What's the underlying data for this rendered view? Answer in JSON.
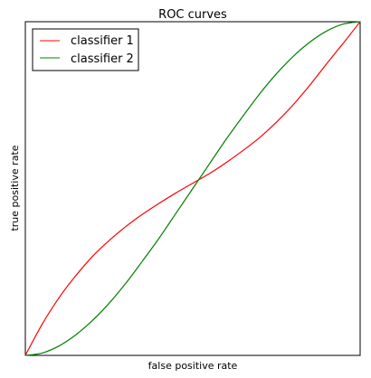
{
  "chart_data": {
    "type": "line",
    "title": "ROC curves",
    "xlabel": "false positive rate",
    "ylabel": "true positive rate",
    "xlim": [
      0,
      1
    ],
    "ylim": [
      0,
      1
    ],
    "grid": false,
    "ticks_visible": false,
    "legend_position": "top-left",
    "series": [
      {
        "name": "classifier 1",
        "color": "#ff0000",
        "x": [
          0,
          0.05,
          0.1,
          0.15,
          0.2,
          0.25,
          0.3,
          0.35,
          0.4,
          0.45,
          0.5,
          0.55,
          0.6,
          0.65,
          0.7,
          0.75,
          0.8,
          0.85,
          0.9,
          0.95,
          1.0
        ],
        "y": [
          0,
          0.093,
          0.172,
          0.238,
          0.296,
          0.344,
          0.386,
          0.423,
          0.456,
          0.487,
          0.516,
          0.545,
          0.578,
          0.614,
          0.653,
          0.699,
          0.751,
          0.81,
          0.874,
          0.936,
          1.0
        ]
      },
      {
        "name": "classifier 2",
        "color": "#008000",
        "x": [
          0,
          0.05,
          0.1,
          0.15,
          0.2,
          0.25,
          0.3,
          0.35,
          0.4,
          0.45,
          0.5,
          0.55,
          0.6,
          0.65,
          0.7,
          0.75,
          0.8,
          0.85,
          0.9,
          0.95,
          1.0
        ],
        "y": [
          0,
          0.007,
          0.028,
          0.061,
          0.104,
          0.156,
          0.216,
          0.283,
          0.352,
          0.426,
          0.5,
          0.574,
          0.648,
          0.717,
          0.784,
          0.844,
          0.896,
          0.939,
          0.972,
          0.993,
          1.0
        ]
      }
    ]
  }
}
